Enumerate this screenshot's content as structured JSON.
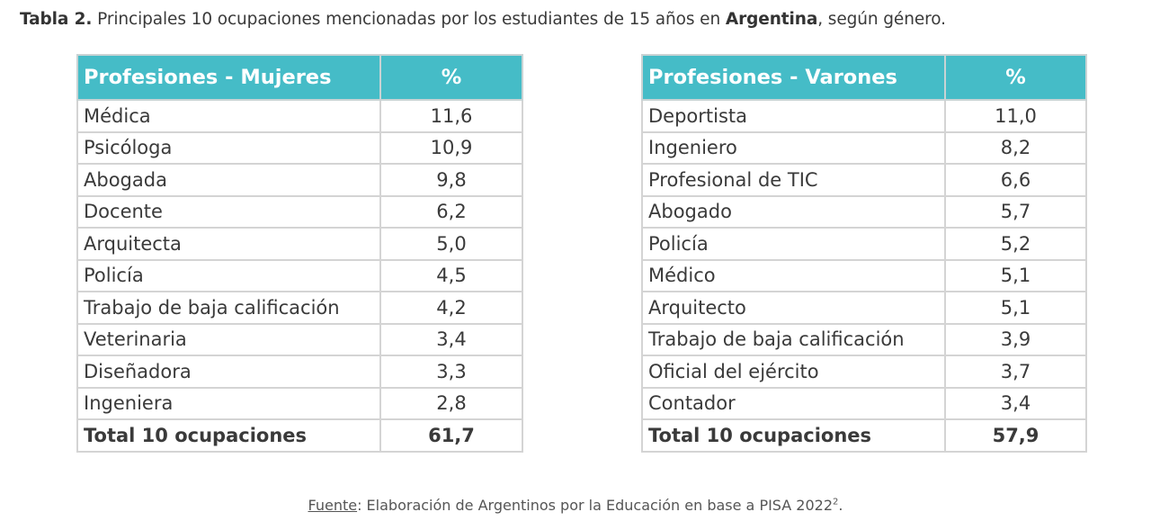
{
  "caption": {
    "label": "Tabla 2.",
    "text_before": " Principales 10 ocupaciones mencionadas por los estudiantes de 15 años en ",
    "country": "Argentina",
    "text_after": ", según género."
  },
  "women_table": {
    "header_name": "Profesiones - Mujeres",
    "header_pct": "%",
    "rows": [
      {
        "name": "Médica",
        "pct": "11,6"
      },
      {
        "name": "Psicóloga",
        "pct": "10,9"
      },
      {
        "name": "Abogada",
        "pct": "9,8"
      },
      {
        "name": "Docente",
        "pct": "6,2"
      },
      {
        "name": "Arquitecta",
        "pct": "5,0"
      },
      {
        "name": "Policía",
        "pct": "4,5"
      },
      {
        "name": "Trabajo de baja calificación",
        "pct": "4,2"
      },
      {
        "name": "Veterinaria",
        "pct": "3,4"
      },
      {
        "name": "Diseñadora",
        "pct": "3,3"
      },
      {
        "name": "Ingeniera",
        "pct": "2,8"
      }
    ],
    "total_label": "Total 10 ocupaciones",
    "total_pct": "61,7"
  },
  "men_table": {
    "header_name": "Profesiones - Varones",
    "header_pct": "%",
    "rows": [
      {
        "name": "Deportista",
        "pct": "11,0"
      },
      {
        "name": "Ingeniero",
        "pct": "8,2"
      },
      {
        "name": "Profesional de TIC",
        "pct": "6,6"
      },
      {
        "name": "Abogado",
        "pct": "5,7"
      },
      {
        "name": "Policía",
        "pct": "5,2"
      },
      {
        "name": "Médico",
        "pct": "5,1"
      },
      {
        "name": "Arquitecto",
        "pct": "5,1"
      },
      {
        "name": "Trabajo de baja calificación",
        "pct": "3,9"
      },
      {
        "name": "Oficial del ejército",
        "pct": "3,7"
      },
      {
        "name": "Contador",
        "pct": "3,4"
      }
    ],
    "total_label": "Total 10 ocupaciones",
    "total_pct": "57,9"
  },
  "source": {
    "label": "Fuente",
    "text": ": Elaboración de Argentinos por la Educación en base a PISA 2022",
    "footnote": "2",
    "end": "."
  },
  "colors": {
    "header_bg": "#45bcc7",
    "header_text": "#ffffff",
    "border": "#d4d4d4"
  }
}
